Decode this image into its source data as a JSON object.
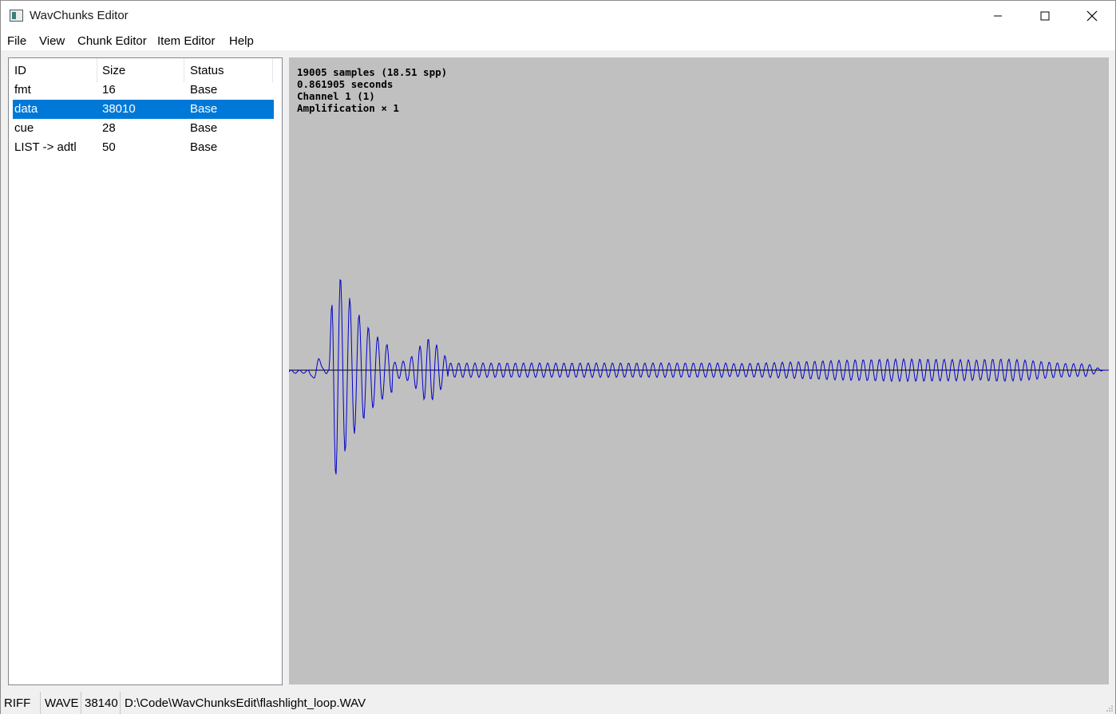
{
  "window": {
    "title": "WavChunks Editor"
  },
  "menu": [
    "File",
    "View",
    "Chunk Editor",
    "Item Editor",
    "Help"
  ],
  "chunk_list": {
    "columns": [
      "ID",
      "Size",
      "Status"
    ],
    "rows": [
      {
        "id": "fmt",
        "size": "16",
        "status": "Base",
        "selected": false
      },
      {
        "id": "data",
        "size": "38010",
        "status": "Base",
        "selected": true
      },
      {
        "id": "cue",
        "size": "28",
        "status": "Base",
        "selected": false
      },
      {
        "id": "LIST -> adtl",
        "size": "50",
        "status": "Base",
        "selected": false
      }
    ]
  },
  "waveform": {
    "info": [
      "19005 samples (18.51 spp)",
      "0.861905 seconds",
      "Channel 1 (1)",
      "Amplification × 1"
    ],
    "colors": {
      "background": "#c0c0c0",
      "wave": "#0000cc",
      "baseline": "#000000"
    }
  },
  "statusbar": {
    "riff": "RIFF",
    "form": "WAVE",
    "size": "38140",
    "path": "D:\\Code\\WavChunksEdit\\flashlight_loop.WAV"
  },
  "colors": {
    "selection": "#0078d7"
  }
}
